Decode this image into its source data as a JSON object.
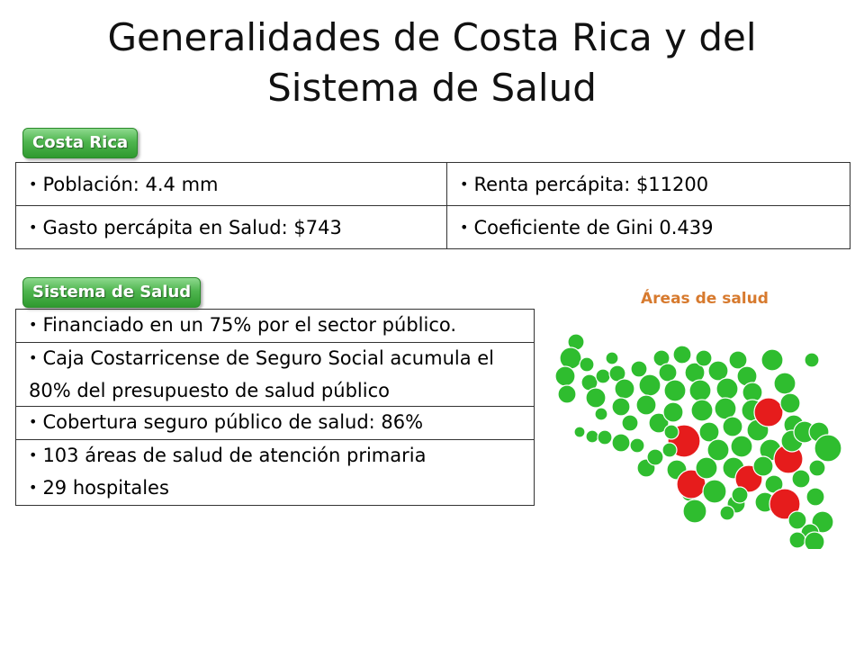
{
  "slide": {
    "title": "Generalidades de Costa Rica y del Sistema de Salud"
  },
  "costa_rica": {
    "tag": "Costa Rica",
    "rows": [
      [
        "Población: 4.4 mm",
        "Renta percápita: $11200"
      ],
      [
        "Gasto percápita en Salud: $743",
        "Coeficiente de Gini 0.439"
      ]
    ]
  },
  "sistema_salud": {
    "tag": "Sistema de Salud",
    "rows": [
      [
        "Financiado en un 75% por el sector público."
      ],
      [
        "Caja Costarricense de Seguro Social acumula el 80% del presupuesto de salud público"
      ],
      [
        "Cobertura seguro público de salud: 86%"
      ],
      [
        "103 áreas de salud de atención primaria",
        "29 hospitales"
      ]
    ]
  },
  "map": {
    "label": "Áreas de salud",
    "colors": {
      "area": "#2fbd2f",
      "hospital_area": "#e61c1c",
      "stroke": "#ffffff"
    }
  }
}
